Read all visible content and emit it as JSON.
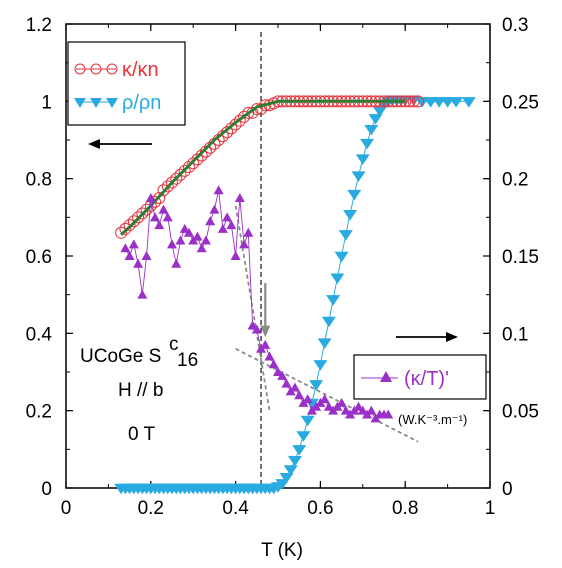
{
  "chart_data": {
    "type": "scatter",
    "xlabel": "T (K)",
    "xlim": [
      0,
      1
    ],
    "ylim_left": [
      0,
      1.2
    ],
    "ylim_right": [
      0,
      0.3
    ],
    "x_ticks": [
      "0",
      "0.2",
      "0.4",
      "0.6",
      "0.8",
      "1"
    ],
    "y_left_ticks": [
      "0",
      "0.2",
      "0.4",
      "0.6",
      "0.8",
      "1",
      "1.2"
    ],
    "y_right_ticks": [
      "0",
      "0.05",
      "0.1",
      "0.15",
      "0.2",
      "0.25",
      "0.3"
    ],
    "series": [
      {
        "name": "κ/κn",
        "axis": "left",
        "color": "#e8323c",
        "marker": "open-circle",
        "x": [
          0.13,
          0.14,
          0.15,
          0.16,
          0.17,
          0.18,
          0.19,
          0.2,
          0.21,
          0.22,
          0.23,
          0.24,
          0.25,
          0.26,
          0.27,
          0.28,
          0.29,
          0.3,
          0.31,
          0.32,
          0.33,
          0.34,
          0.35,
          0.36,
          0.37,
          0.38,
          0.39,
          0.4,
          0.41,
          0.42,
          0.43,
          0.44,
          0.45,
          0.46,
          0.47,
          0.48,
          0.49,
          0.5,
          0.51,
          0.52,
          0.53,
          0.54,
          0.55,
          0.56,
          0.57,
          0.58,
          0.59,
          0.6,
          0.61,
          0.62,
          0.63,
          0.64,
          0.65,
          0.66,
          0.67,
          0.68,
          0.69,
          0.7,
          0.71,
          0.72,
          0.73,
          0.74,
          0.75,
          0.76,
          0.77,
          0.78,
          0.79,
          0.8,
          0.81,
          0.82,
          0.83
        ],
        "y": [
          0.66,
          0.67,
          0.68,
          0.69,
          0.7,
          0.71,
          0.72,
          0.73,
          0.74,
          0.75,
          0.77,
          0.78,
          0.79,
          0.8,
          0.81,
          0.82,
          0.83,
          0.84,
          0.85,
          0.86,
          0.87,
          0.88,
          0.89,
          0.9,
          0.91,
          0.92,
          0.93,
          0.94,
          0.95,
          0.96,
          0.97,
          0.97,
          0.98,
          0.98,
          0.99,
          0.99,
          0.995,
          1.0,
          1.0,
          1.0,
          1.0,
          1.0,
          1.0,
          1.0,
          1.0,
          1.0,
          1.0,
          1.0,
          1.0,
          1.0,
          1.0,
          1.0,
          1.0,
          1.0,
          1.0,
          1.0,
          1.0,
          1.0,
          1.0,
          1.0,
          1.0,
          1.0,
          1.0,
          1.0,
          1.0,
          1.0,
          1.0,
          1.0,
          1.0,
          1.0,
          1.0
        ]
      },
      {
        "name": "ρ/ρn",
        "axis": "right",
        "color": "#29abe2",
        "marker": "filled-triangle-down",
        "x": [
          0.13,
          0.14,
          0.15,
          0.16,
          0.17,
          0.18,
          0.19,
          0.2,
          0.21,
          0.22,
          0.23,
          0.24,
          0.25,
          0.26,
          0.27,
          0.28,
          0.29,
          0.3,
          0.31,
          0.32,
          0.33,
          0.34,
          0.35,
          0.36,
          0.37,
          0.38,
          0.39,
          0.4,
          0.41,
          0.42,
          0.43,
          0.44,
          0.45,
          0.46,
          0.47,
          0.48,
          0.49,
          0.5,
          0.51,
          0.52,
          0.53,
          0.54,
          0.55,
          0.56,
          0.57,
          0.58,
          0.59,
          0.6,
          0.61,
          0.62,
          0.63,
          0.64,
          0.65,
          0.66,
          0.67,
          0.68,
          0.69,
          0.7,
          0.71,
          0.72,
          0.73,
          0.74,
          0.75,
          0.76,
          0.77,
          0.78,
          0.79,
          0.8,
          0.82,
          0.84,
          0.86,
          0.88,
          0.9,
          0.92,
          0.95
        ],
        "y": [
          0,
          0,
          0,
          0,
          0,
          0,
          0,
          0,
          0,
          0,
          0,
          0,
          0,
          0,
          0,
          0,
          0,
          0,
          0,
          0,
          0,
          0,
          0,
          0,
          0,
          0,
          0,
          0,
          0,
          0,
          0,
          0,
          0,
          0,
          0,
          0,
          0,
          0.001,
          0.003,
          0.007,
          0.012,
          0.018,
          0.025,
          0.034,
          0.044,
          0.055,
          0.067,
          0.08,
          0.094,
          0.108,
          0.122,
          0.136,
          0.15,
          0.164,
          0.177,
          0.19,
          0.202,
          0.213,
          0.223,
          0.232,
          0.239,
          0.244,
          0.248,
          0.25,
          0.251,
          0.251,
          0.251,
          0.251,
          0.251,
          0.25,
          0.25,
          0.25,
          0.25,
          0.25,
          0.25
        ]
      },
      {
        "name": "(κ/T)'",
        "axis": "left",
        "color": "#9b30c8",
        "marker": "filled-triangle-up",
        "x": [
          0.14,
          0.15,
          0.16,
          0.17,
          0.18,
          0.19,
          0.2,
          0.21,
          0.22,
          0.23,
          0.24,
          0.25,
          0.26,
          0.27,
          0.28,
          0.29,
          0.3,
          0.31,
          0.32,
          0.33,
          0.34,
          0.35,
          0.36,
          0.37,
          0.38,
          0.39,
          0.4,
          0.41,
          0.42,
          0.43,
          0.44,
          0.45,
          0.46,
          0.47,
          0.48,
          0.49,
          0.5,
          0.51,
          0.52,
          0.53,
          0.54,
          0.55,
          0.56,
          0.57,
          0.58,
          0.59,
          0.6,
          0.61,
          0.62,
          0.63,
          0.64,
          0.65,
          0.66,
          0.67,
          0.68,
          0.69,
          0.7,
          0.71,
          0.72,
          0.73,
          0.74,
          0.75,
          0.76
        ],
        "y": [
          0.62,
          0.6,
          0.63,
          0.58,
          0.5,
          0.6,
          0.75,
          0.7,
          0.68,
          0.72,
          0.7,
          0.63,
          0.58,
          0.64,
          0.67,
          0.66,
          0.64,
          0.65,
          0.62,
          0.64,
          0.69,
          0.72,
          0.77,
          0.67,
          0.7,
          0.68,
          0.6,
          0.75,
          0.63,
          0.66,
          0.42,
          0.41,
          0.36,
          0.37,
          0.34,
          0.32,
          0.3,
          0.29,
          0.27,
          0.25,
          0.26,
          0.24,
          0.22,
          0.23,
          0.2,
          0.21,
          0.22,
          0.23,
          0.21,
          0.2,
          0.21,
          0.22,
          0.2,
          0.19,
          0.2,
          0.21,
          0.2,
          0.19,
          0.2,
          0.18,
          0.19,
          0.19,
          0.19
        ]
      }
    ],
    "fit_line": {
      "color": "#2e7d32",
      "x": [
        0.13,
        0.15,
        0.2,
        0.25,
        0.3,
        0.35,
        0.4,
        0.45,
        0.5,
        0.55,
        0.6,
        0.7,
        0.8
      ],
      "y": [
        0.655,
        0.675,
        0.73,
        0.79,
        0.845,
        0.9,
        0.945,
        0.985,
        1.0,
        1.0,
        1.0,
        1.0,
        1.0
      ]
    },
    "vertical_dashed_x": 0.46,
    "guide_lines": [
      {
        "from": [
          0.4,
          0.73
        ],
        "to": [
          0.48,
          0.2
        ]
      },
      {
        "from": [
          0.4,
          0.36
        ],
        "to": [
          0.83,
          0.12
        ]
      }
    ],
    "legend_top": [
      "κ/κn",
      "ρ/ρn"
    ],
    "legend_mid": "(κ/T)'",
    "units_label": "(W.K⁻³.m⁻¹)"
  },
  "annotations": {
    "line1_a": "UCoGe  S",
    "line1_sup": "c",
    "line1_sub": "16",
    "line2": "H // b",
    "line3": "0 T"
  }
}
